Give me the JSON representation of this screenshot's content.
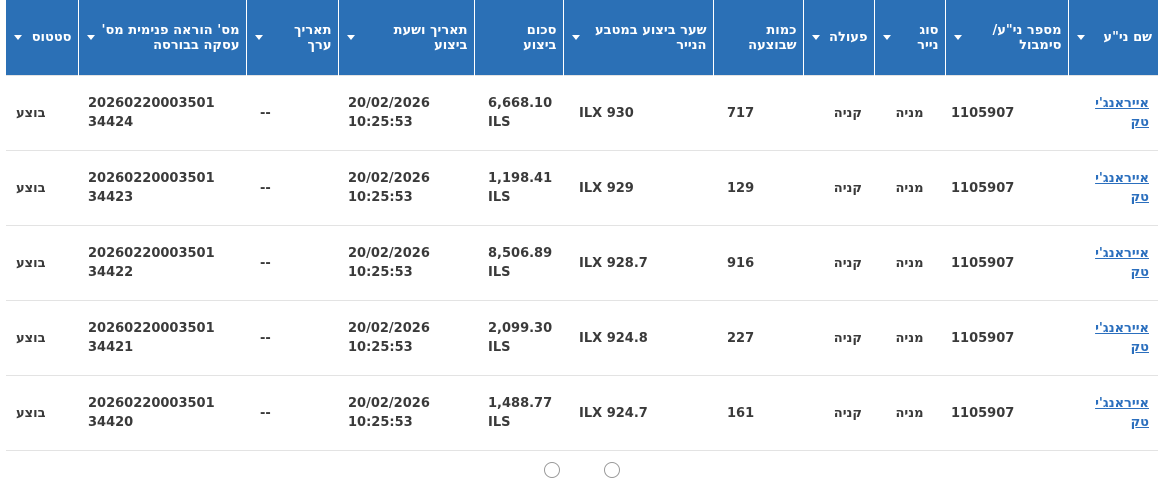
{
  "columns": {
    "name": "שם ני\"ע",
    "symbol": "מספר ני\"ע/ סימבול",
    "type": "סוג נייר",
    "action": "פעולה",
    "qty": "כמות שבוצעה",
    "rate": "שער ביצוע במטבע הנייר",
    "amount": "סכום ביצוע",
    "datetime": "תאריך ושעת ביצוע",
    "value_date": "תאריך ערך",
    "ref": "מס' הוראה פנימית מס' עסקה בבורסה",
    "status": "סטטוס"
  },
  "rows": [
    {
      "name": "אייראנג'י טק",
      "symbol": "1105907",
      "type": "מניה",
      "action": "קניה",
      "qty": "717",
      "rate": "930",
      "currency": "ILX",
      "amount": "6,668.10",
      "amount_cur": "ILS",
      "date": "20/02/2026",
      "time": "10:25:53",
      "value_date": "--",
      "ref1": "20260220003501",
      "ref2": "34424",
      "status": "בוצע"
    },
    {
      "name": "אייראנג'י טק",
      "symbol": "1105907",
      "type": "מניה",
      "action": "קניה",
      "qty": "129",
      "rate": "929",
      "currency": "ILX",
      "amount": "1,198.41",
      "amount_cur": "ILS",
      "date": "20/02/2026",
      "time": "10:25:53",
      "value_date": "--",
      "ref1": "20260220003501",
      "ref2": "34423",
      "status": "בוצע"
    },
    {
      "name": "אייראנג'י טק",
      "symbol": "1105907",
      "type": "מניה",
      "action": "קניה",
      "qty": "916",
      "rate": "928.7",
      "currency": "ILX",
      "amount": "8,506.89",
      "amount_cur": "ILS",
      "date": "20/02/2026",
      "time": "10:25:53",
      "value_date": "--",
      "ref1": "20260220003501",
      "ref2": "34422",
      "status": "בוצע"
    },
    {
      "name": "אייראנג'י טק",
      "symbol": "1105907",
      "type": "מניה",
      "action": "קניה",
      "qty": "227",
      "rate": "924.8",
      "currency": "ILX",
      "amount": "2,099.30",
      "amount_cur": "ILS",
      "date": "20/02/2026",
      "time": "10:25:53",
      "value_date": "--",
      "ref1": "20260220003501",
      "ref2": "34421",
      "status": "בוצע"
    },
    {
      "name": "אייראנג'י טק",
      "symbol": "1105907",
      "type": "מניה",
      "action": "קניה",
      "qty": "161",
      "rate": "924.7",
      "currency": "ILX",
      "amount": "1,488.77",
      "amount_cur": "ILS",
      "date": "20/02/2026",
      "time": "10:25:53",
      "value_date": "--",
      "ref1": "20260220003501",
      "ref2": "34420",
      "status": "בוצע"
    }
  ],
  "colors": {
    "header_bg": "#2b70b6",
    "link": "#2b6fbe"
  },
  "icons": {
    "sort": "caret-down-icon"
  }
}
